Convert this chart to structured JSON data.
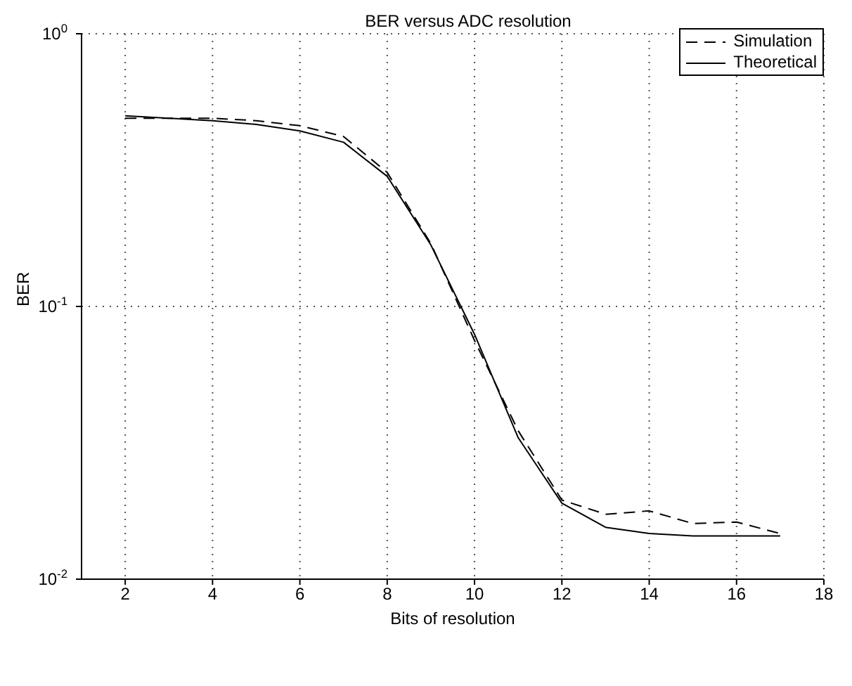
{
  "chart_data": {
    "type": "line",
    "title": "BER versus ADC resolution",
    "xlabel": "Bits of resolution",
    "ylabel": "BER",
    "x": [
      2,
      3,
      4,
      5,
      6,
      7,
      8,
      9,
      10,
      11,
      12,
      13,
      14,
      15,
      16,
      17
    ],
    "series": [
      {
        "name": "Simulation",
        "color": "#000000",
        "line_style": "dashed",
        "values": [
          0.49,
          0.49,
          0.49,
          0.48,
          0.46,
          0.42,
          0.31,
          0.17,
          0.075,
          0.035,
          0.0195,
          0.0173,
          0.0178,
          0.016,
          0.0162,
          0.0147
        ]
      },
      {
        "name": "Theoretical",
        "color": "#000000",
        "line_style": "solid",
        "values": [
          0.5,
          0.49,
          0.48,
          0.465,
          0.44,
          0.4,
          0.3,
          0.168,
          0.079,
          0.033,
          0.019,
          0.0155,
          0.0147,
          0.0144,
          0.0144,
          0.0144
        ]
      }
    ],
    "xlim": [
      1,
      18
    ],
    "xticks": [
      2,
      4,
      6,
      8,
      10,
      12,
      14,
      16,
      18
    ],
    "ylim": [
      0.01,
      1
    ],
    "yticks": [
      {
        "value": 0.01,
        "label": "10$^{-2}$"
      },
      {
        "value": 0.1,
        "label": "10$^{-1}$"
      },
      {
        "value": 1,
        "label": "10$^{0}$"
      }
    ],
    "log": "y",
    "grid": true,
    "legend": "top right",
    "marker": "none"
  }
}
